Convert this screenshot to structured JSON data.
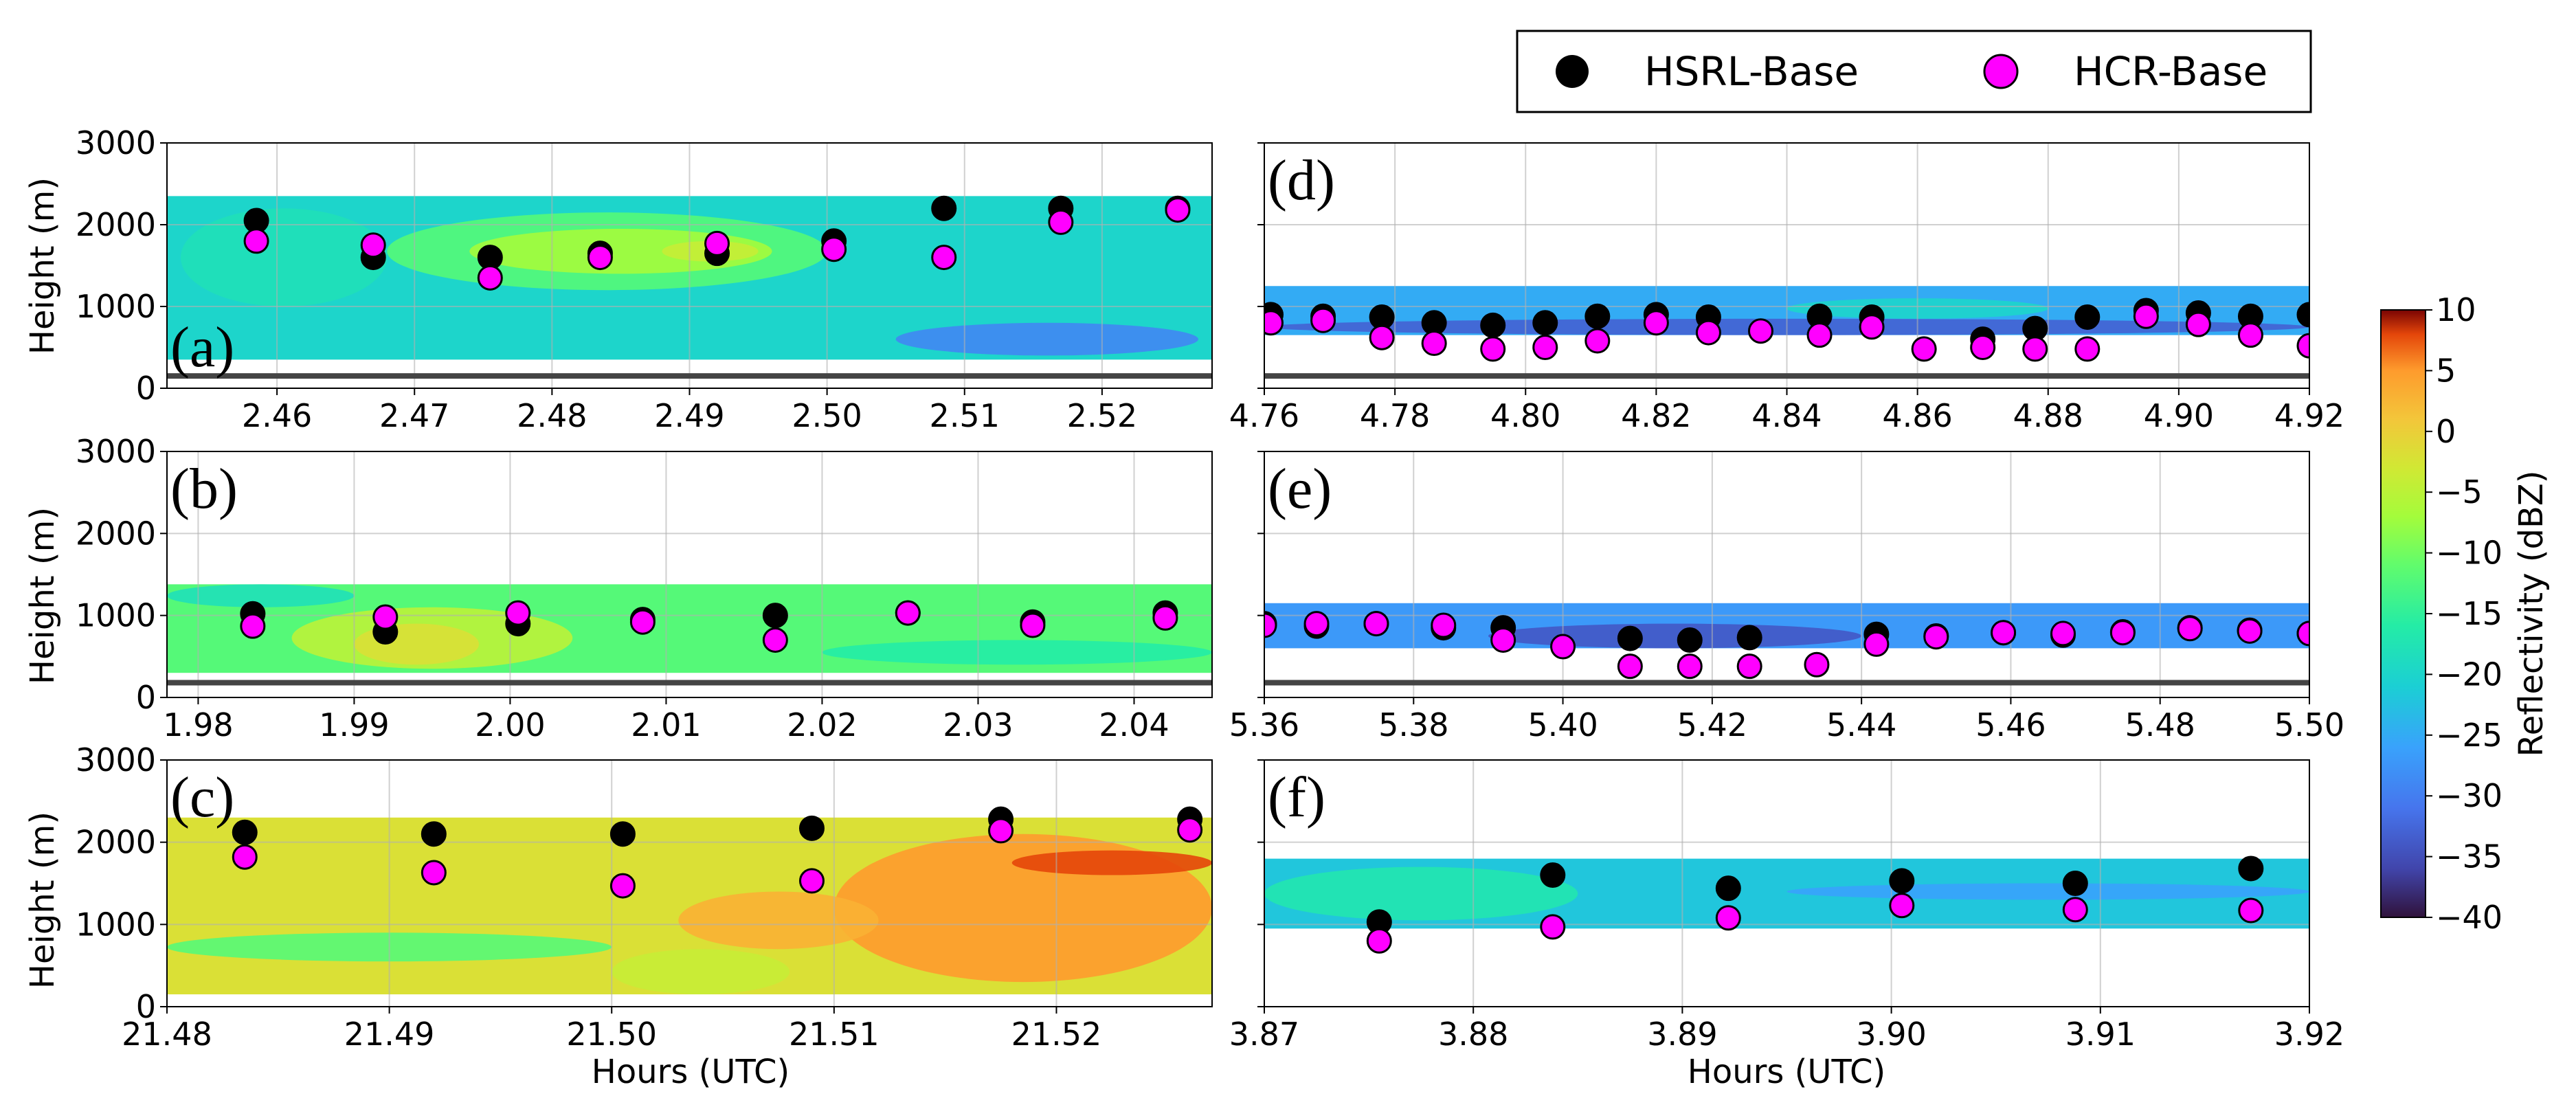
{
  "legend": {
    "items": [
      {
        "label": "HSRL-Base",
        "color": "#000000"
      },
      {
        "label": "HCR-Base",
        "color": "#ff00ff"
      }
    ]
  },
  "x_axis_title": "Hours (UTC)",
  "y_axis_title": "Height (m)",
  "colorbar": {
    "label": "Reflectivity (dBZ)",
    "range": [
      -40,
      10
    ],
    "ticks": [
      "10",
      "5",
      "0",
      "−5",
      "−10",
      "−15",
      "−20",
      "−25",
      "−30",
      "−35",
      "−40"
    ]
  },
  "chart_data": [
    {
      "panel": "(a)",
      "type": "scatter",
      "xlim": [
        2.452,
        2.528
      ],
      "ylim": [
        0,
        3000
      ],
      "grid": true,
      "xticks": [
        "2.46",
        "2.47",
        "2.48",
        "2.49",
        "2.50",
        "2.51",
        "2.52"
      ],
      "yticks": [
        "0",
        "1000",
        "2000",
        "3000"
      ],
      "surface_m": 150,
      "series": [
        {
          "name": "HSRL-Base",
          "x": [
            2.4585,
            2.467,
            2.4755,
            2.4835,
            2.492,
            2.5005,
            2.5085,
            2.517,
            2.5255
          ],
          "y": [
            2050,
            1600,
            1600,
            1650,
            1650,
            1800,
            2200,
            2200,
            2200
          ]
        },
        {
          "name": "HCR-Base",
          "x": [
            2.4585,
            2.467,
            2.4755,
            2.4835,
            2.492,
            2.5005,
            2.5085,
            2.517,
            2.5255
          ],
          "y": [
            1800,
            1750,
            1350,
            1600,
            1770,
            1700,
            1600,
            2030,
            2180
          ]
        }
      ],
      "reflectivity_field": {
        "cloud_top_m": 2350,
        "cloud_base_m": 350,
        "background_dBZ": -20,
        "regions": [
          {
            "x": [
              2.468,
              2.5
            ],
            "y": [
              1200,
              2150
            ],
            "dBZ": -12
          },
          {
            "x": [
              2.474,
              2.496
            ],
            "y": [
              1400,
              1950
            ],
            "dBZ": -7
          },
          {
            "x": [
              2.488,
              2.495
            ],
            "y": [
              1550,
              1800
            ],
            "dBZ": -4
          },
          {
            "x": [
              2.505,
              2.527
            ],
            "y": [
              400,
              800
            ],
            "dBZ": -29
          },
          {
            "x": [
              2.453,
              2.468
            ],
            "y": [
              1000,
              2200
            ],
            "dBZ": -18
          }
        ]
      }
    },
    {
      "panel": "(b)",
      "type": "scatter",
      "xlim": [
        1.978,
        2.045
      ],
      "ylim": [
        0,
        3000
      ],
      "grid": true,
      "xticks": [
        "1.98",
        "1.99",
        "2.00",
        "2.01",
        "2.02",
        "2.03",
        "2.04"
      ],
      "yticks": [
        "0",
        "1000",
        "2000",
        "3000"
      ],
      "surface_m": 180,
      "series": [
        {
          "name": "HSRL-Base",
          "x": [
            1.9835,
            1.992,
            2.0005,
            2.0085,
            2.017,
            2.0255,
            2.0335,
            2.042
          ],
          "y": [
            1020,
            800,
            900,
            950,
            1000,
            1030,
            920,
            1030
          ]
        },
        {
          "name": "HCR-Base",
          "x": [
            1.9835,
            1.992,
            2.0005,
            2.0085,
            2.017,
            2.0255,
            2.0335,
            2.042
          ],
          "y": [
            870,
            980,
            1030,
            920,
            700,
            1030,
            880,
            970
          ]
        }
      ],
      "reflectivity_field": {
        "cloud_top_m": 1380,
        "cloud_base_m": 300,
        "background_dBZ": -12,
        "regions": [
          {
            "x": [
              1.986,
              2.004
            ],
            "y": [
              350,
              1100
            ],
            "dBZ": -5
          },
          {
            "x": [
              1.99,
              1.998
            ],
            "y": [
              400,
              900
            ],
            "dBZ": -2
          },
          {
            "x": [
              1.978,
              1.99
            ],
            "y": [
              1100,
              1380
            ],
            "dBZ": -18
          },
          {
            "x": [
              2.02,
              2.045
            ],
            "y": [
              400,
              700
            ],
            "dBZ": -16
          }
        ]
      }
    },
    {
      "panel": "(c)",
      "type": "scatter",
      "xlim": [
        21.48,
        21.527
      ],
      "ylim": [
        0,
        3000
      ],
      "grid": true,
      "xticks": [
        "21.48",
        "21.49",
        "21.50",
        "21.51",
        "21.52"
      ],
      "yticks": [
        "0",
        "1000",
        "2000",
        "3000"
      ],
      "series": [
        {
          "name": "HSRL-Base",
          "x": [
            21.4835,
            21.492,
            21.5005,
            21.509,
            21.5175,
            21.526
          ],
          "y": [
            2120,
            2100,
            2100,
            2170,
            2280,
            2280
          ]
        },
        {
          "name": "HCR-Base",
          "x": [
            21.4835,
            21.492,
            21.5005,
            21.509,
            21.5175,
            21.526
          ],
          "y": [
            1820,
            1630,
            1470,
            1530,
            2140,
            2150
          ]
        }
      ],
      "reflectivity_field": {
        "cloud_top_m": 2300,
        "cloud_base_m": 150,
        "background_dBZ": -2,
        "regions": [
          {
            "x": [
              21.48,
              21.5
            ],
            "y": [
              550,
              900
            ],
            "dBZ": -12
          },
          {
            "x": [
              21.51,
              21.527
            ],
            "y": [
              300,
              2100
            ],
            "dBZ": 5
          },
          {
            "x": [
              21.503,
              21.512
            ],
            "y": [
              700,
              1400
            ],
            "dBZ": 3
          },
          {
            "x": [
              21.518,
              21.527
            ],
            "y": [
              1600,
              1900
            ],
            "dBZ": 8
          },
          {
            "x": [
              21.5,
              21.508
            ],
            "y": [
              150,
              700
            ],
            "dBZ": -4
          }
        ]
      }
    },
    {
      "panel": "(d)",
      "type": "scatter",
      "xlim": [
        4.76,
        4.92
      ],
      "ylim": [
        0,
        3000
      ],
      "grid": true,
      "xticks": [
        "4.76",
        "4.78",
        "4.80",
        "4.82",
        "4.84",
        "4.86",
        "4.88",
        "4.90",
        "4.92"
      ],
      "surface_m": 150,
      "series": [
        {
          "name": "HSRL-Base",
          "x": [
            4.761,
            4.769,
            4.778,
            4.786,
            4.795,
            4.803,
            4.811,
            4.82,
            4.828,
            4.845,
            4.853,
            4.87,
            4.878,
            4.886,
            4.895,
            4.903,
            4.911,
            4.92
          ],
          "y": [
            900,
            880,
            870,
            800,
            770,
            800,
            880,
            900,
            870,
            880,
            870,
            600,
            730,
            870,
            950,
            920,
            880,
            900
          ]
        },
        {
          "name": "HCR-Base",
          "x": [
            4.761,
            4.769,
            4.778,
            4.786,
            4.795,
            4.803,
            4.811,
            4.82,
            4.828,
            4.836,
            4.845,
            4.853,
            4.861,
            4.87,
            4.878,
            4.886,
            4.895,
            4.903,
            4.911,
            4.92
          ],
          "y": [
            800,
            830,
            620,
            550,
            480,
            500,
            580,
            800,
            680,
            700,
            650,
            750,
            480,
            500,
            480,
            480,
            880,
            780,
            650,
            520
          ]
        }
      ],
      "reflectivity_field": {
        "cloud_top_m": 1250,
        "cloud_base_m": 650,
        "background_dBZ": -25,
        "regions": [
          {
            "x": [
              4.76,
              4.92
            ],
            "y": [
              650,
              850
            ],
            "dBZ": -33
          },
          {
            "x": [
              4.84,
              4.88
            ],
            "y": [
              850,
              1100
            ],
            "dBZ": -20
          }
        ]
      }
    },
    {
      "panel": "(e)",
      "type": "scatter",
      "xlim": [
        5.36,
        5.5
      ],
      "ylim": [
        0,
        3000
      ],
      "grid": true,
      "xticks": [
        "5.36",
        "5.38",
        "5.40",
        "5.42",
        "5.44",
        "5.46",
        "5.48",
        "5.50"
      ],
      "surface_m": 180,
      "series": [
        {
          "name": "HSRL-Base",
          "x": [
            5.36,
            5.367,
            5.375,
            5.384,
            5.392,
            5.409,
            5.417,
            5.425,
            5.442,
            5.45,
            5.459,
            5.467,
            5.475,
            5.484,
            5.492,
            5.5
          ],
          "y": [
            900,
            870,
            900,
            850,
            850,
            720,
            700,
            730,
            770,
            750,
            790,
            760,
            800,
            850,
            820,
            780
          ]
        },
        {
          "name": "HCR-Base",
          "x": [
            5.36,
            5.367,
            5.375,
            5.384,
            5.392,
            5.4,
            5.409,
            5.417,
            5.425,
            5.434,
            5.442,
            5.45,
            5.459,
            5.467,
            5.475,
            5.484,
            5.492,
            5.5
          ],
          "y": [
            880,
            900,
            900,
            880,
            700,
            620,
            380,
            380,
            380,
            400,
            650,
            740,
            790,
            780,
            790,
            840,
            810,
            780
          ]
        }
      ],
      "reflectivity_field": {
        "cloud_top_m": 1150,
        "cloud_base_m": 600,
        "background_dBZ": -27,
        "regions": [
          {
            "x": [
              5.39,
              5.44
            ],
            "y": [
              600,
              900
            ],
            "dBZ": -34
          }
        ]
      }
    },
    {
      "panel": "(f)",
      "type": "scatter",
      "xlim": [
        3.87,
        3.92
      ],
      "ylim": [
        0,
        3000
      ],
      "grid": true,
      "xticks": [
        "3.87",
        "3.88",
        "3.89",
        "3.90",
        "3.91",
        "3.92"
      ],
      "series": [
        {
          "name": "HSRL-Base",
          "x": [
            3.8755,
            3.8838,
            3.8922,
            3.9005,
            3.9088,
            3.9172
          ],
          "y": [
            1030,
            1600,
            1440,
            1530,
            1500,
            1680
          ]
        },
        {
          "name": "HCR-Base",
          "x": [
            3.8755,
            3.8838,
            3.8922,
            3.9005,
            3.9088,
            3.9172
          ],
          "y": [
            800,
            970,
            1080,
            1230,
            1180,
            1170
          ]
        }
      ],
      "reflectivity_field": {
        "cloud_top_m": 1800,
        "cloud_base_m": 950,
        "background_dBZ": -22,
        "regions": [
          {
            "x": [
              3.87,
              3.885
            ],
            "y": [
              1050,
              1700
            ],
            "dBZ": -17
          },
          {
            "x": [
              3.895,
              3.92
            ],
            "y": [
              1300,
              1500
            ],
            "dBZ": -26
          }
        ]
      }
    }
  ]
}
